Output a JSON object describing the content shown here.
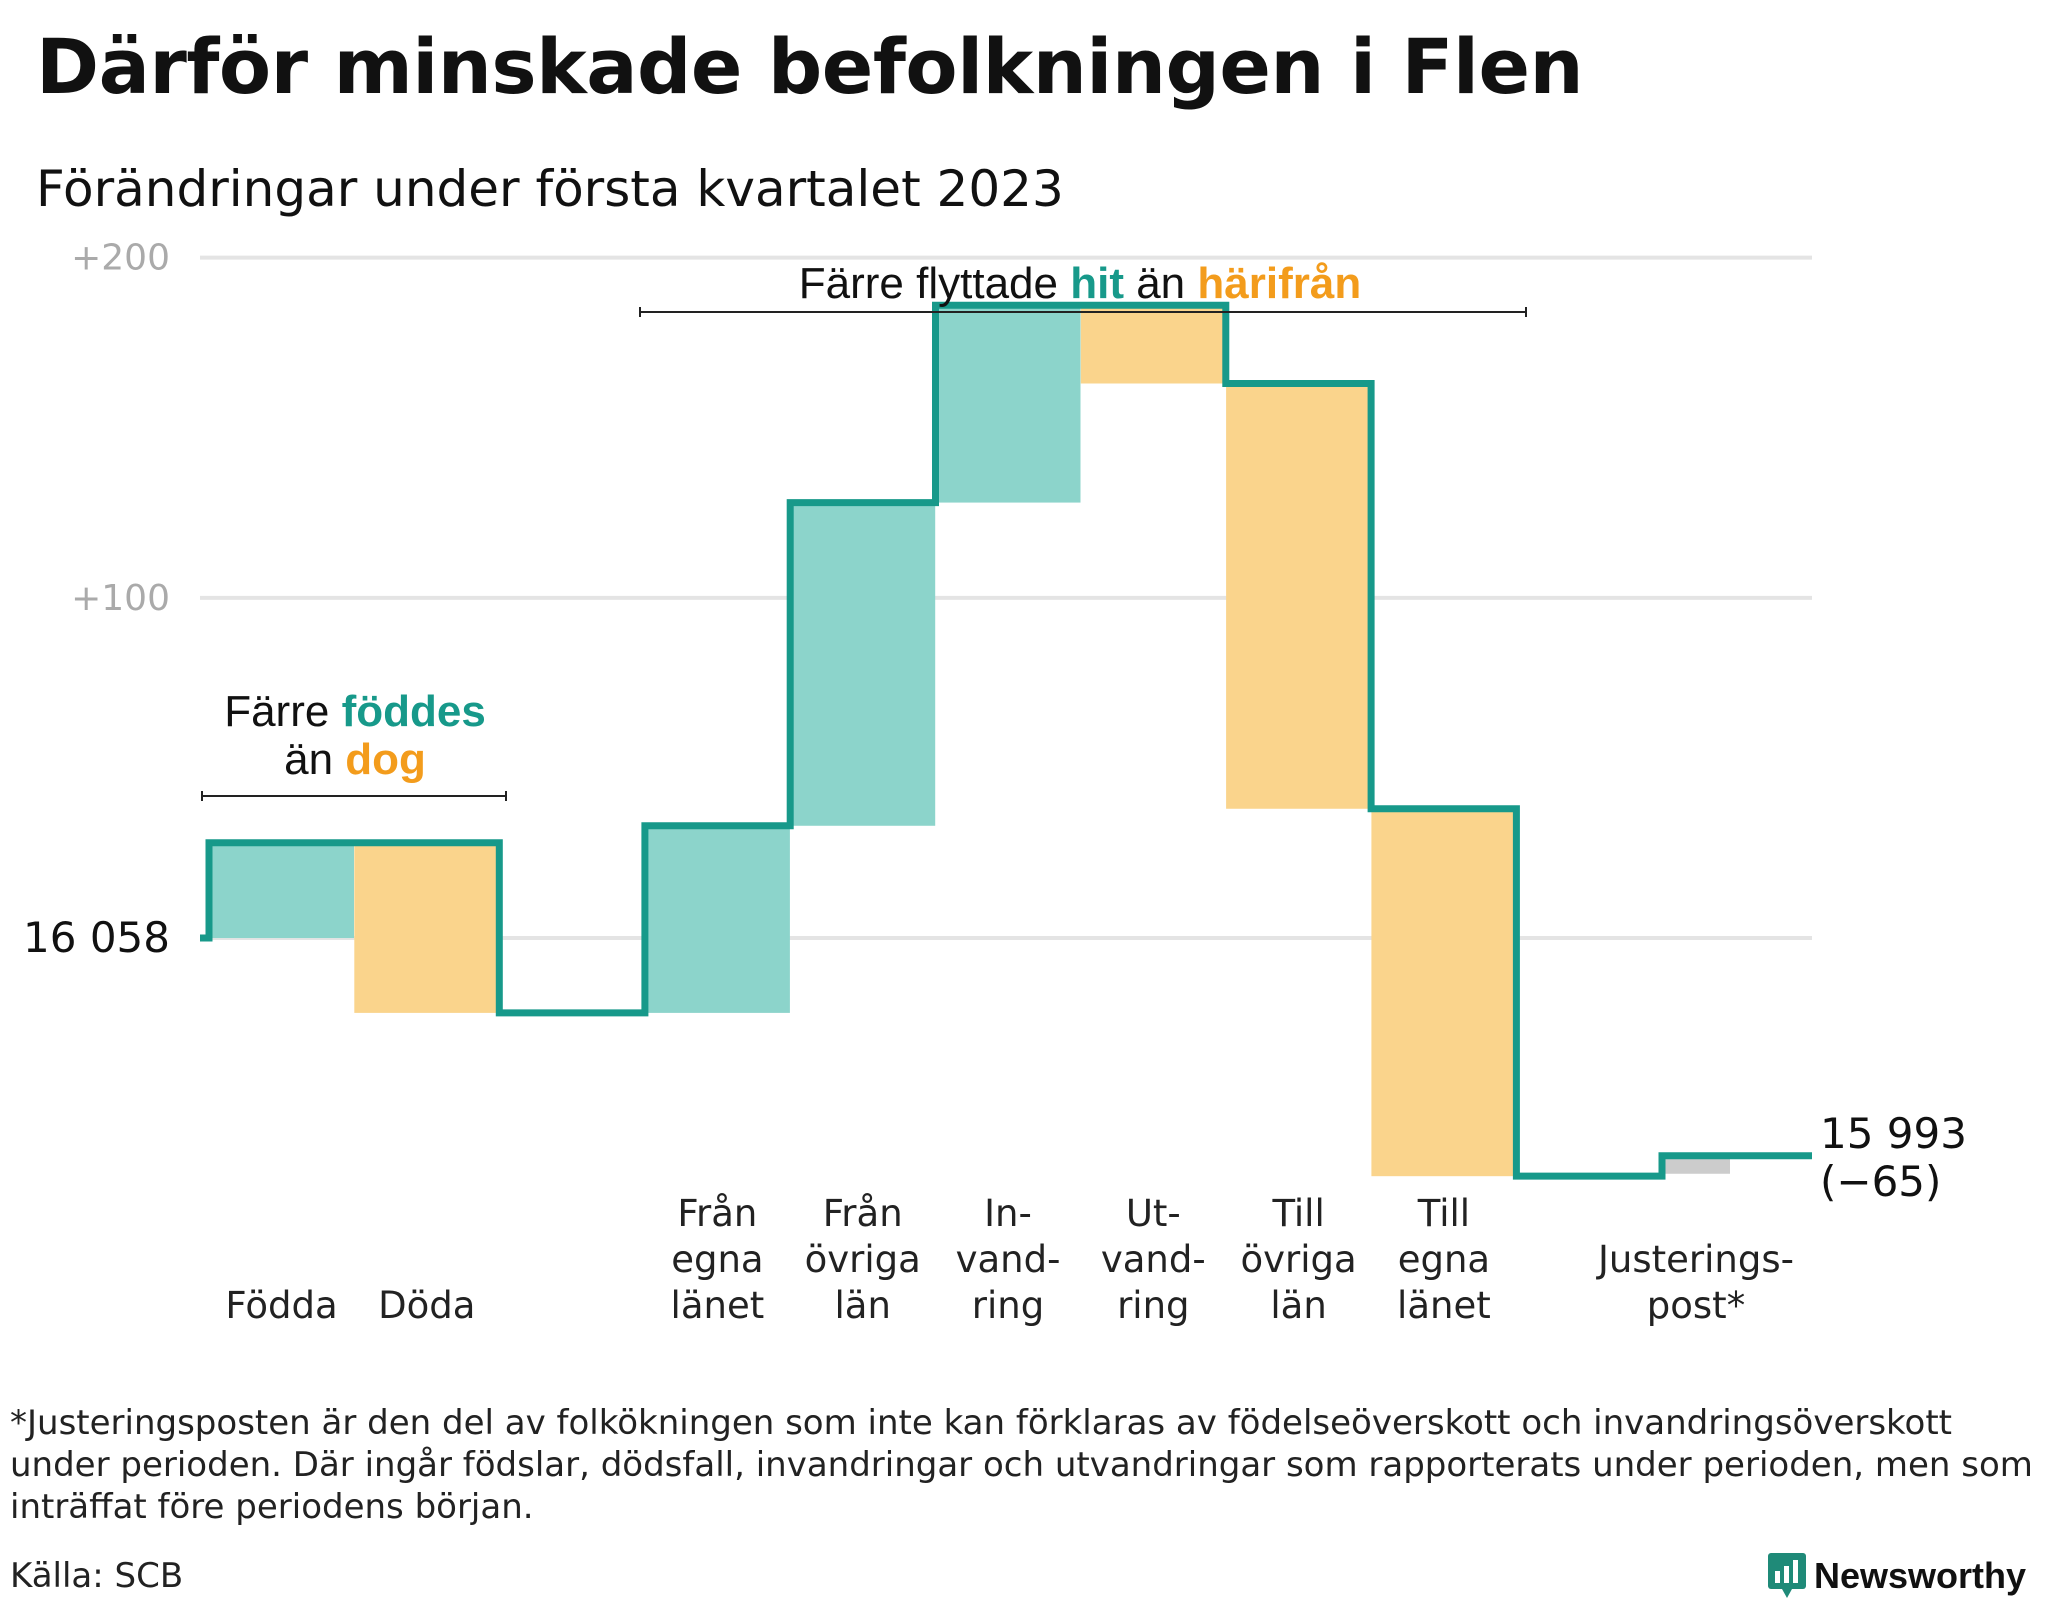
{
  "title": "Därför minskade befolkningen i Flen",
  "subtitle": "Förändringar under första kvartalet 2023",
  "colors": {
    "increase_fill": "#8cd4cb",
    "decrease_fill": "#fad48c",
    "adjustment_fill": "#cccccc",
    "line": "#17998a",
    "accent_teal": "#17998a",
    "accent_orange": "#f39c1c",
    "grid": "#e4e4e4",
    "brand": "#1f8a78"
  },
  "chart_data": {
    "type": "waterfall",
    "baseline_value": 16058,
    "baseline_label": "16 058",
    "y_ticks": [
      {
        "offset": 200,
        "label": "+200"
      },
      {
        "offset": 100,
        "label": "+100"
      }
    ],
    "ylim": [
      -77,
      214
    ],
    "steps": [
      {
        "name": "Födda",
        "label_lines": [
          "Födda"
        ],
        "change": 28,
        "kind": "increase"
      },
      {
        "name": "Döda",
        "label_lines": [
          "Döda"
        ],
        "change": -50,
        "kind": "decrease"
      },
      {
        "name": "Från egna länet",
        "label_lines": [
          "Från",
          "egna",
          "länet"
        ],
        "change": 55,
        "kind": "increase"
      },
      {
        "name": "Från övriga län",
        "label_lines": [
          "Från",
          "övriga",
          "län"
        ],
        "change": 95,
        "kind": "increase"
      },
      {
        "name": "Invandring",
        "label_lines": [
          "In-",
          "vand-",
          "ring"
        ],
        "change": 58,
        "kind": "increase"
      },
      {
        "name": "Utvandring",
        "label_lines": [
          "Ut-",
          "vand-",
          "ring"
        ],
        "change": -23,
        "kind": "decrease"
      },
      {
        "name": "Till övriga län",
        "label_lines": [
          "Till",
          "övriga",
          "län"
        ],
        "change": -125,
        "kind": "decrease"
      },
      {
        "name": "Till egna länet",
        "label_lines": [
          "Till",
          "egna",
          "länet"
        ],
        "change": -108,
        "kind": "decrease"
      },
      {
        "name": "Justeringspost*",
        "label_lines": [
          "Justerings-",
          "post*"
        ],
        "change": 6,
        "kind": "adjustment"
      }
    ],
    "end_value": 15993,
    "end_label_lines": [
      "15 993",
      "(−65)"
    ],
    "annotations": [
      {
        "lines": [
          [
            {
              "text": "Färre ",
              "style": "plain"
            },
            {
              "text": "föddes",
              "style": "teal"
            }
          ],
          [
            {
              "text": "än ",
              "style": "plain"
            },
            {
              "text": "dog",
              "style": "orange"
            }
          ]
        ]
      },
      {
        "lines": [
          [
            {
              "text": "Färre flyttade ",
              "style": "plain"
            },
            {
              "text": "hit",
              "style": "teal"
            },
            {
              "text": " än ",
              "style": "plain"
            },
            {
              "text": "härifrån",
              "style": "orange"
            }
          ]
        ]
      }
    ]
  },
  "footnote": "*Justeringsposten är den del av folkökningen som inte kan förklaras av födelseöverskott och invandringsöverskott under perioden. Där ingår födslar, dödsfall, invandringar och utvandringar som rapporterats under perioden, men som inträffat före periodens början.",
  "source": "Källa: SCB",
  "brand": {
    "name": "Newsworthy",
    "icon": "newsworthy-logo-icon"
  }
}
